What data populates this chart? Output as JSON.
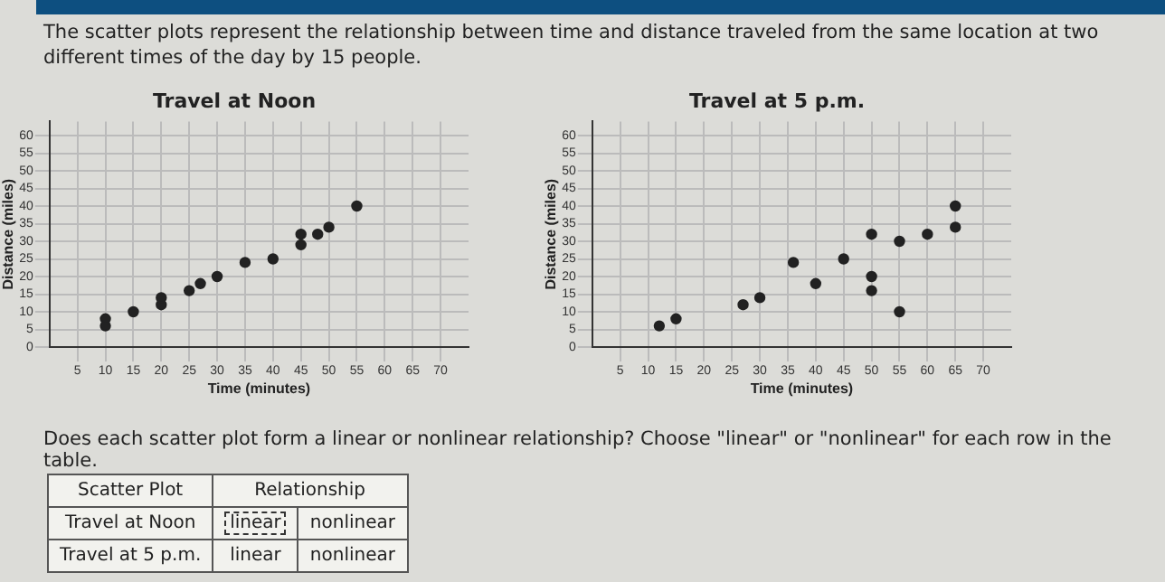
{
  "chart_data": [
    {
      "type": "other",
      "title": "The scatter plots represent the relationship between time and distance traveled from the same location at two different times of the day by 15 people."
    },
    {
      "type": "scatter",
      "title": "Travel at Noon",
      "xlabel": "Time (minutes)",
      "ylabel": "Distance (miles)",
      "marker": "circle",
      "grid": true,
      "xlim": [
        0,
        75
      ],
      "xticks": [
        5,
        10,
        15,
        20,
        25,
        30,
        35,
        40,
        45,
        50,
        55,
        60,
        65,
        70
      ],
      "ylim": [
        0,
        64
      ],
      "yticks": [
        0,
        5,
        10,
        15,
        20,
        25,
        30,
        35,
        40,
        45,
        50,
        55,
        60
      ],
      "series": [
        {
          "color": "#222222",
          "x": [
            10,
            10,
            15,
            20,
            20,
            25,
            27,
            30,
            35,
            40,
            45,
            45,
            48,
            50,
            55
          ],
          "values": [
            6,
            8,
            10,
            12,
            14,
            16,
            18,
            20,
            24,
            25,
            29,
            32,
            32,
            34,
            40
          ]
        }
      ]
    },
    {
      "type": "scatter",
      "title": "Travel at 5 p.m.",
      "xlabel": "Time (minutes)",
      "ylabel": "Distance (miles)",
      "marker": "circle",
      "grid": true,
      "xlim": [
        0,
        75
      ],
      "xticks": [
        5,
        10,
        15,
        20,
        25,
        30,
        35,
        40,
        45,
        50,
        55,
        60,
        65,
        70
      ],
      "ylim": [
        0,
        64
      ],
      "yticks": [
        0,
        5,
        10,
        15,
        20,
        25,
        30,
        35,
        40,
        45,
        50,
        55,
        60
      ],
      "series": [
        {
          "color": "#222222",
          "x": [
            12,
            15,
            27,
            30,
            36,
            40,
            45,
            50,
            50,
            50,
            55,
            55,
            60,
            65,
            65
          ],
          "values": [
            6,
            8,
            12,
            14,
            24,
            18,
            25,
            32,
            20,
            16,
            30,
            10,
            32,
            40,
            34
          ]
        }
      ]
    },
    {
      "type": "other",
      "title": "Does each scatter plot form a linear or nonlinear relationship? Choose \"linear\" or \"nonlinear\" for each row in the table.",
      "annotations": [
        "Scatter Plot",
        "Relationship",
        "Travel at Noon",
        "linear",
        "nonlinear",
        "Travel at 5 p.m.",
        "linear",
        "nonlinear"
      ]
    }
  ]
}
